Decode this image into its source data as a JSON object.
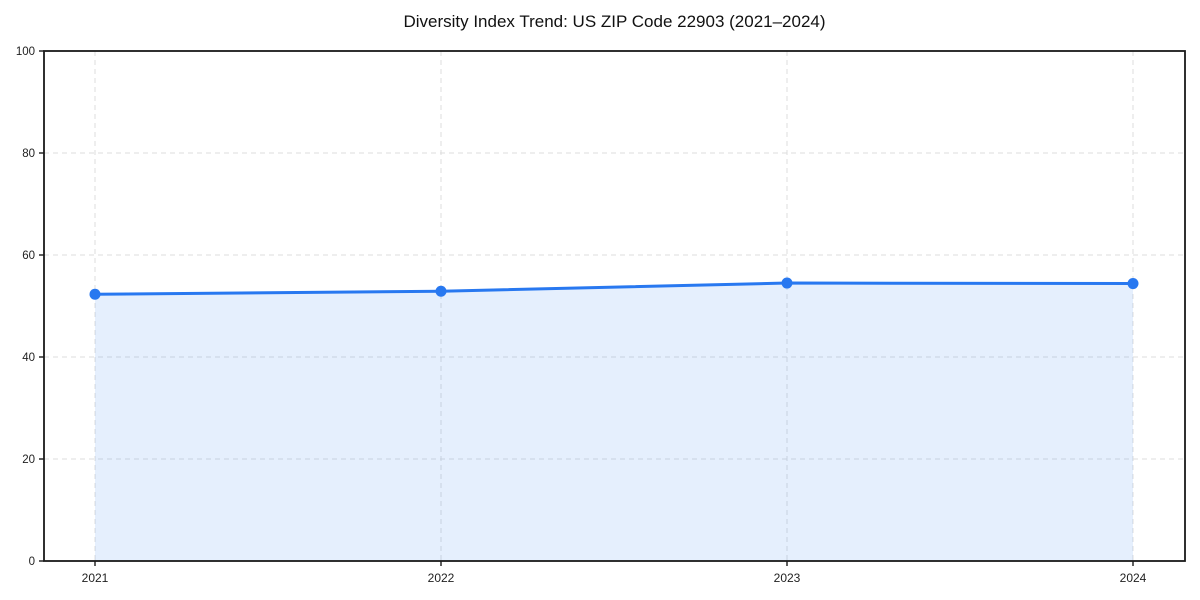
{
  "page": {
    "background": "#ffffff"
  },
  "chart_data": {
    "type": "area",
    "title": "Diversity Index Trend: US ZIP Code 22903 (2021–2024)",
    "x": [
      "2021",
      "2022",
      "2023",
      "2024"
    ],
    "series": [
      {
        "name": "Diversity Index",
        "values": [
          52.3,
          52.9,
          54.5,
          54.4
        ]
      }
    ],
    "xlabel": "",
    "ylabel": "",
    "ylim": [
      0,
      100
    ],
    "yticks": [
      0,
      20,
      40,
      60,
      80,
      100
    ],
    "grid": true,
    "grid_style": "dashed",
    "legend_position": "none",
    "colors": {
      "line": "#2878f0",
      "marker": "#2878f0",
      "fill": "#2878f0",
      "grid": "#dcdcdc",
      "spine": "#1a1a1a",
      "tick_label": "#1f1f1f",
      "title": "#111111"
    },
    "fill_opacity": 0.12
  }
}
